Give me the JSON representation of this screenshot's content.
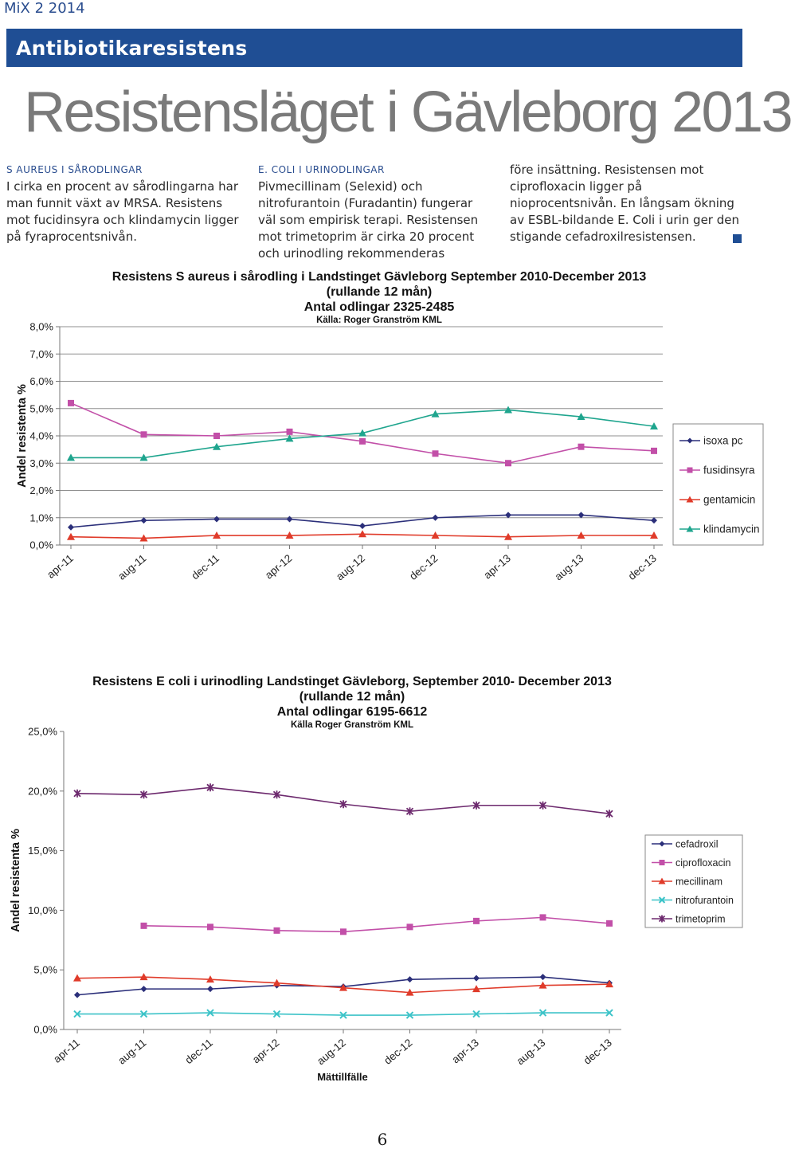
{
  "page": {
    "running_head": "MiX 2 2014",
    "section_banner": "Antibiotikaresistens",
    "title": "Resistensläget i Gävleborg 2013",
    "page_number": "6",
    "accent_color": "#1f4e94"
  },
  "columns": [
    {
      "heading": "S aureus i sårodlingar",
      "text": "I cirka en procent av sårodlingarna har man funnit växt av MRSA. Resistens mot fucidinsyra och klindamycin ligger på fyraprocentsnivån."
    },
    {
      "heading": "E. coli i urinodlingar",
      "text": "Pivmecillinam (Selexid) och nitrofurantoin (Furadantin) fungerar väl som empirisk terapi. Resistensen mot trimetoprim är cirka 20 procent och urinodling rekommenderas"
    },
    {
      "heading": "",
      "text": "före insättning. Resistensen mot ciprofloxacin ligger på nioprocentsnivån. En långsam ökning av ESBL-bildande E. Coli i urin ger den stigande cefadroxilresistensen."
    }
  ],
  "chart_data": [
    {
      "type": "line",
      "title": "Resistens S aureus i sårodling i Landstinget Gävleborg September 2010-December 2013",
      "subtitle": "(rullande 12 mån)",
      "subtitle2": "Antal odlingar 2325-2485",
      "source": "Källa: Roger Granström  KML",
      "ylabel": "Andel resistenta %",
      "xlabel": "",
      "ylim": [
        0,
        8
      ],
      "yticks": [
        "0,0%",
        "1,0%",
        "2,0%",
        "3,0%",
        "4,0%",
        "5,0%",
        "6,0%",
        "7,0%",
        "8,0%"
      ],
      "x": [
        "apr-11",
        "aug-11",
        "dec-11",
        "apr-12",
        "aug-12",
        "dec-12",
        "apr-13",
        "aug-13",
        "dec-13"
      ],
      "grid": true,
      "legend_position": "right",
      "series": [
        {
          "name": "isoxa pc",
          "color": "#2b2f7a",
          "marker": "diamond",
          "values": [
            0.65,
            0.9,
            0.95,
            0.95,
            0.7,
            1.0,
            1.1,
            1.1,
            0.9
          ]
        },
        {
          "name": "fusidinsyra",
          "color": "#c24fa8",
          "marker": "square",
          "values": [
            5.2,
            4.05,
            4.0,
            4.15,
            3.8,
            3.35,
            3.0,
            3.6,
            3.45
          ]
        },
        {
          "name": "gentamicin",
          "color": "#e03b2a",
          "marker": "triangle",
          "values": [
            0.3,
            0.25,
            0.35,
            0.35,
            0.4,
            0.35,
            0.3,
            0.35,
            0.35
          ]
        },
        {
          "name": "klindamycin",
          "color": "#1fa58e",
          "marker": "triangle",
          "values": [
            3.2,
            3.2,
            3.6,
            3.9,
            4.1,
            4.8,
            4.95,
            4.7,
            4.35
          ]
        }
      ]
    },
    {
      "type": "line",
      "title": "Resistens E coli i urinodling Landstinget Gävleborg, September 2010- December 2013",
      "subtitle": "(rullande 12 mån)",
      "subtitle2": "Antal odlingar 6195-6612",
      "source": "Källa Roger Granström KML",
      "ylabel": "Andel resistenta %",
      "xlabel": "Mättillfälle",
      "ylim": [
        0,
        25
      ],
      "yticks": [
        "0,0%",
        "5,0%",
        "10,0%",
        "15,0%",
        "20,0%",
        "25,0%"
      ],
      "x": [
        "apr-11",
        "aug-11",
        "dec-11",
        "apr-12",
        "aug-12",
        "dec-12",
        "apr-13",
        "aug-13",
        "dec-13"
      ],
      "grid": false,
      "legend_position": "right",
      "series": [
        {
          "name": "cefadroxil",
          "color": "#2b2f7a",
          "marker": "diamond",
          "values": [
            2.9,
            3.4,
            3.4,
            3.7,
            3.6,
            4.2,
            4.3,
            4.4,
            3.9
          ]
        },
        {
          "name": "ciprofloxacin",
          "color": "#c24fa8",
          "marker": "square",
          "values": [
            null,
            8.7,
            8.6,
            8.3,
            8.2,
            8.6,
            9.1,
            9.4,
            8.9
          ]
        },
        {
          "name": "mecillinam",
          "color": "#e03b2a",
          "marker": "triangle",
          "values": [
            4.3,
            4.4,
            4.2,
            3.9,
            3.5,
            3.1,
            3.4,
            3.7,
            3.8
          ]
        },
        {
          "name": "nitrofurantoin",
          "color": "#3cc3c8",
          "marker": "x",
          "values": [
            1.3,
            1.3,
            1.4,
            1.3,
            1.2,
            1.2,
            1.3,
            1.4,
            1.4
          ]
        },
        {
          "name": "trimetoprim",
          "color": "#6d2a6e",
          "marker": "star",
          "values": [
            19.8,
            19.7,
            20.3,
            19.7,
            18.9,
            18.3,
            18.8,
            18.8,
            18.1
          ]
        }
      ]
    }
  ]
}
